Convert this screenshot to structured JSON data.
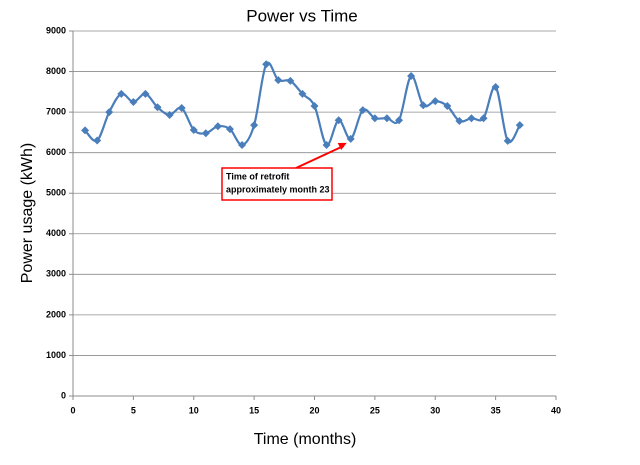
{
  "chart_data": {
    "type": "line",
    "title": "Power vs Time",
    "x_label": "Time  (months)",
    "y_label": "Power usage (kWh)",
    "x": [
      1,
      2,
      3,
      4,
      5,
      6,
      7,
      8,
      9,
      10,
      11,
      12,
      13,
      14,
      15,
      16,
      17,
      18,
      19,
      20,
      21,
      22,
      23,
      24,
      25,
      26,
      27,
      28,
      29,
      30,
      31,
      32,
      33,
      34,
      35,
      36,
      37
    ],
    "series": [
      {
        "color": "#4a7ebb",
        "smooth": true,
        "values": [
          6550,
          6300,
          7000,
          7450,
          7250,
          7450,
          7120,
          6930,
          7100,
          6560,
          6480,
          6650,
          6580,
          6190,
          6680,
          8180,
          7790,
          7770,
          7450,
          7150,
          6190,
          6800,
          6340,
          7050,
          6850,
          6850,
          6800,
          7890,
          7170,
          7270,
          7150,
          6780,
          6850,
          6850,
          7620,
          6290,
          6680
        ]
      }
    ],
    "xlim": [
      0,
      40
    ],
    "xticks": [
      0,
      5,
      10,
      15,
      20,
      25,
      30,
      35,
      40
    ],
    "ylim": [
      0,
      9000
    ],
    "yticks": [
      0,
      1000,
      2000,
      3000,
      4000,
      5000,
      6000,
      7000,
      8000,
      9000
    ],
    "grid": true,
    "annotation": [
      "Time of retrofit",
      "approximately month 23"
    ]
  }
}
